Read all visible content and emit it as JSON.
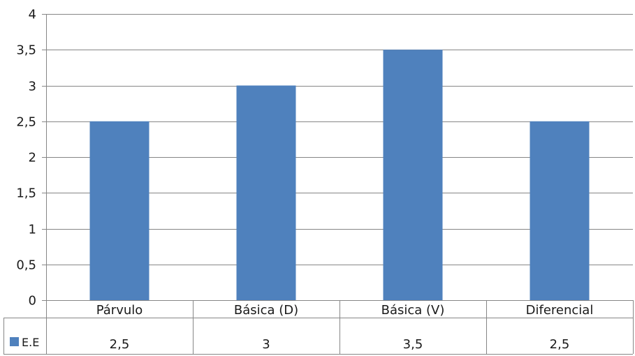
{
  "chart_data": {
    "type": "bar",
    "categories": [
      "Párvulo",
      "Básica (D)",
      "Básica (V)",
      "Diferencial"
    ],
    "series": [
      {
        "name": "E.E",
        "values": [
          2.5,
          3,
          3.5,
          2.5
        ],
        "value_labels": [
          "2,5",
          "3",
          "3,5",
          "2,5"
        ]
      }
    ],
    "ylim": [
      0,
      4
    ],
    "yticks": [
      0,
      0.5,
      1,
      1.5,
      2,
      2.5,
      3,
      3.5,
      4
    ],
    "ytick_labels": [
      "0",
      "0,5",
      "1",
      "1,5",
      "2",
      "2,5",
      "3",
      "3,5",
      "4"
    ],
    "grid": true,
    "data_table": true,
    "colors": {
      "bar": "#4f81bd",
      "grid": "#868686",
      "axis": "#868686"
    }
  }
}
